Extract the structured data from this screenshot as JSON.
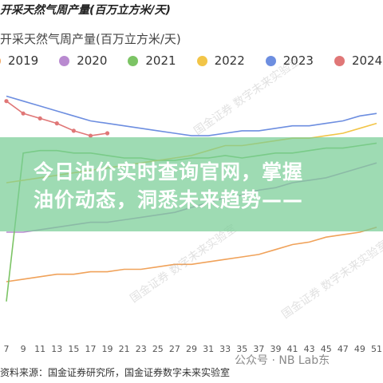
{
  "header": {
    "title": "开采天然气周产量(百万立方米/天)"
  },
  "banner": {
    "line1": "今日油价实时查询官网，掌握",
    "line2": "油价动态，洞悉未来趋势——"
  },
  "source": "资料来源：国金证券研究所，国金证券数字未来实验室",
  "wechat": "公众号 · NB Lab东",
  "watermark": "国金证券 数字未来实验室",
  "chart_data": {
    "type": "line",
    "title": "开采天然气周产量(百万立方米/天)",
    "legend_placement": "top",
    "grid": false,
    "x": [
      7,
      9,
      11,
      13,
      15,
      17,
      19,
      21,
      23,
      25,
      27,
      29,
      31,
      33,
      35,
      37,
      39,
      41,
      43,
      45,
      47,
      49,
      51
    ],
    "x_tick_labels": [
      "7",
      "9",
      "11",
      "13",
      "15",
      "17",
      "19",
      "21",
      "23",
      "25",
      "27",
      "29",
      "31",
      "33",
      "35",
      "37",
      "39",
      "41",
      "43",
      "45",
      "47",
      "49",
      "51"
    ],
    "ylim": [
      0,
      100
    ],
    "series": [
      {
        "name": "2019",
        "color": "#f0a25a",
        "x": [
          7,
          9,
          11,
          13,
          15,
          17,
          19,
          21,
          23,
          25,
          27,
          29,
          31,
          33,
          35,
          37,
          39,
          41,
          43,
          45,
          47,
          49,
          51
        ],
        "values": [
          20,
          21,
          22,
          23,
          23,
          24,
          24,
          25,
          25,
          26,
          27,
          27,
          28,
          29,
          30,
          31,
          33,
          35,
          36,
          38,
          39,
          40,
          42
        ]
      },
      {
        "name": "2020",
        "color": "#b98ad0",
        "x": [
          7,
          9,
          11,
          13,
          15,
          17,
          19,
          21,
          23,
          25,
          27,
          29,
          31,
          33,
          35,
          37,
          39,
          41,
          43,
          45,
          47,
          49,
          51
        ],
        "values": [
          40,
          40,
          41,
          42,
          43,
          44,
          44,
          45,
          46,
          47,
          48,
          50,
          52,
          54,
          55,
          57,
          58,
          60,
          61,
          62,
          64,
          66,
          68
        ]
      },
      {
        "name": "2021",
        "color": "#7cc465",
        "x": [
          7,
          9,
          11,
          13,
          15,
          17,
          19,
          21,
          23,
          25,
          27,
          29,
          31,
          33,
          35,
          37,
          39,
          41,
          43,
          45,
          47,
          49,
          51
        ],
        "values": [
          12,
          72,
          73,
          73,
          72,
          72,
          71,
          70,
          70,
          69,
          69,
          70,
          70,
          71,
          70,
          71,
          72,
          72,
          73,
          74,
          74,
          75,
          76
        ]
      },
      {
        "name": "2022",
        "color": "#f2c548",
        "x": [
          7,
          9,
          11,
          13,
          15,
          17,
          19,
          21,
          23,
          25,
          27,
          29,
          31,
          33,
          35,
          37,
          39,
          41,
          43,
          45,
          47,
          49,
          51
        ],
        "values": [
          60,
          61,
          62,
          63,
          64,
          65,
          66,
          67,
          68,
          69,
          70,
          71,
          73,
          75,
          75,
          76,
          77,
          78,
          78,
          79,
          80,
          82,
          84
        ]
      },
      {
        "name": "2023",
        "color": "#6d8ee0",
        "x": [
          7,
          9,
          11,
          13,
          15,
          17,
          19,
          21,
          23,
          25,
          27,
          29,
          31,
          33,
          35,
          37,
          39,
          41,
          43,
          45,
          47,
          49,
          51
        ],
        "values": [
          95,
          93,
          91,
          89,
          87,
          85,
          84,
          83,
          82,
          81,
          80,
          79,
          79,
          80,
          81,
          81,
          82,
          83,
          83,
          84,
          85,
          87,
          88
        ]
      },
      {
        "name": "2024",
        "color": "#e07777",
        "x": [
          7,
          9,
          11,
          13,
          15,
          17,
          19
        ],
        "values": [
          93,
          88,
          86,
          84,
          81,
          79,
          80
        ]
      }
    ]
  }
}
